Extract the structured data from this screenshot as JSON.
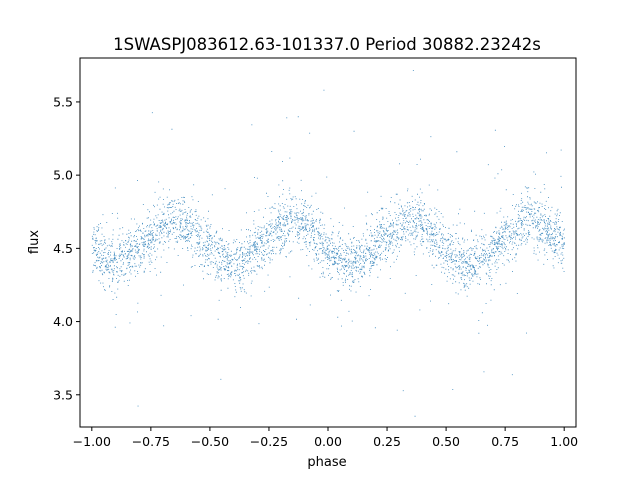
{
  "chart_data": {
    "type": "scatter",
    "title": "1SWASPJ083612.63-101337.0 Period 30882.23242s",
    "xlabel": "phase",
    "ylabel": "flux",
    "xlim": [
      -1.05,
      1.05
    ],
    "ylim": [
      3.28,
      5.8
    ],
    "xticks": [
      -1.0,
      -0.75,
      -0.5,
      -0.25,
      0.0,
      0.25,
      0.5,
      0.75,
      1.0
    ],
    "xtick_labels": [
      "−1.00",
      "−0.75",
      "−0.50",
      "−0.25",
      "0.00",
      "0.25",
      "0.50",
      "0.75",
      "1.00"
    ],
    "yticks": [
      3.5,
      4.0,
      4.5,
      5.0,
      5.5
    ],
    "ytick_labels": [
      "3.5",
      "4.0",
      "4.5",
      "5.0",
      "5.5"
    ],
    "grid": false,
    "legend": "none",
    "marker_color": "#1f77b4",
    "series": [
      {
        "x_range": [
          -1.0,
          1.0
        ],
        "description_of_trend": "folded light curve, two cycles per unit phase",
        "profile_phase": [
          -1.0,
          -0.92,
          -0.85,
          -0.75,
          -0.67,
          -0.6,
          -0.5,
          -0.42,
          -0.33,
          -0.25,
          -0.17,
          -0.1,
          0.0,
          0.08,
          0.15,
          0.25,
          0.33,
          0.4,
          0.5,
          0.58,
          0.67,
          0.75,
          0.83,
          0.9,
          1.0
        ],
        "profile_flux": [
          4.52,
          4.38,
          4.44,
          4.58,
          4.7,
          4.66,
          4.5,
          4.38,
          4.44,
          4.58,
          4.7,
          4.66,
          4.5,
          4.38,
          4.44,
          4.58,
          4.7,
          4.66,
          4.5,
          4.38,
          4.44,
          4.58,
          4.7,
          4.66,
          4.52
        ]
      }
    ]
  }
}
